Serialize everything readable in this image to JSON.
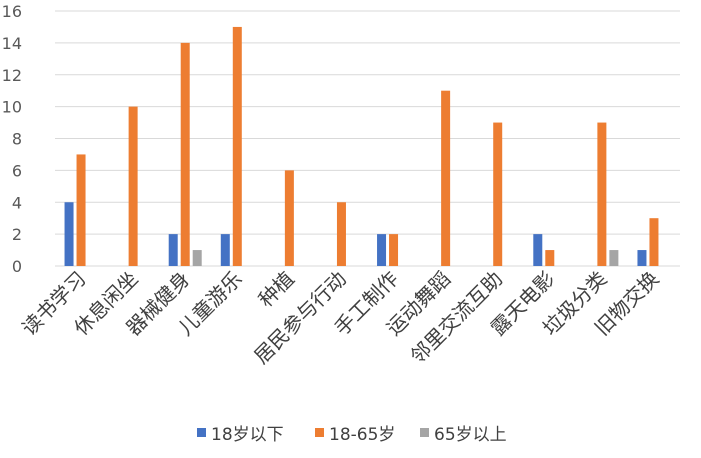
{
  "chart_data": {
    "type": "bar",
    "categories": [
      "读书学习",
      "休息闲坐",
      "器械健身",
      "儿童游乐",
      "种植",
      "居民参与行动",
      "手工制作",
      "运动舞蹈",
      "邻里交流互助",
      "露天电影",
      "垃圾分类",
      "旧物交换"
    ],
    "series": [
      {
        "name": "18岁以下",
        "color": "#4472C4",
        "values": [
          4,
          0,
          2,
          2,
          0,
          0,
          2,
          0,
          0,
          2,
          0,
          1
        ]
      },
      {
        "name": "18-65岁",
        "color": "#ED7D31",
        "values": [
          7,
          10,
          14,
          15,
          6,
          4,
          2,
          11,
          9,
          1,
          9,
          3
        ]
      },
      {
        "name": "65岁以上",
        "color": "#A5A5A5",
        "values": [
          0,
          0,
          1,
          0,
          0,
          0,
          0,
          0,
          0,
          0,
          1,
          0
        ]
      }
    ],
    "ylim": [
      0,
      16
    ],
    "yticks": [
      0,
      2,
      4,
      6,
      8,
      10,
      12,
      14,
      16
    ],
    "grid": true,
    "legend": "bottom",
    "title": "",
    "xlabel": "",
    "ylabel": ""
  }
}
